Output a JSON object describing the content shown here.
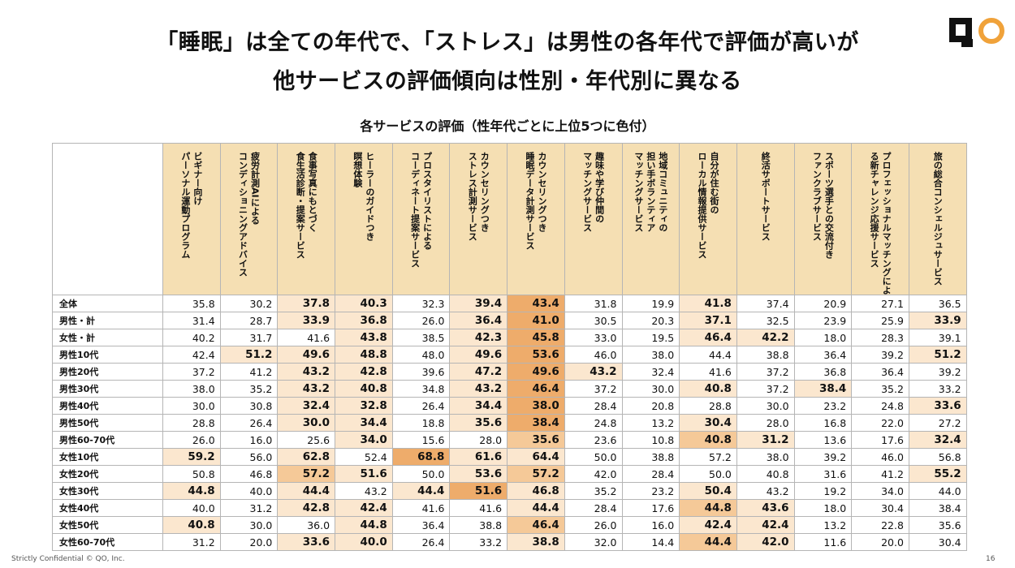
{
  "slide": {
    "title_line1": "「睡眠」は全ての年代で、「ストレス」は男性の各年代で評価が高いが",
    "title_line2": "他サービスの評価傾向は性別・年代別に異なる",
    "subtitle": "各サービスの評価（性年代ごとに上位5つに色付）",
    "footer_left": "Strictly Confidential © QO, Inc.",
    "page_number": "16",
    "logo_text": "QO",
    "logo_colors": {
      "q": "#111111",
      "o": "#f0a23a"
    }
  },
  "colors": {
    "header_bg": "#f5dfb3",
    "highlight_light": "#fbe7cf",
    "highlight_medium": "#f5c998",
    "highlight_dark": "#eeac6b"
  },
  "table": {
    "columns": [
      "ビギナー向け\nパーソナル運動プログラム",
      "疲労計測AIによる\nコンディショニングアドバイス",
      "食事写真にもとづく\n食生活診断・提案サービス",
      "ヒーラーのガイドつき\n瞑想体験",
      "プロスタイリストによる\nコーディネート提案サービス",
      "カウンセリングつき\nストレス計測サービス",
      "カウンセリングつき\n睡眠データ計測サービス",
      "趣味や学び仲間の\nマッチングサービス",
      "地域コミュニティの\n担い手ボランティア\nマッチングサービス",
      "自分が住む街の\nローカル情報提供サービス",
      "終活サポートサービス",
      "スポーツ選手との交流付き\nファンクラブサービス",
      "プロフェッショナルマッチングによ\nる新チャレンジ応援サービス",
      "旅の総合コンシェルジュサービス"
    ],
    "rows": [
      {
        "label": "全体",
        "values": [
          "35.8",
          "30.2",
          "37.8",
          "40.3",
          "32.3",
          "39.4",
          "43.4",
          "31.8",
          "19.9",
          "41.8",
          "37.4",
          "20.9",
          "27.1",
          "36.5"
        ],
        "highlight": [
          0,
          0,
          1,
          1,
          0,
          1,
          3,
          0,
          0,
          1,
          0,
          0,
          0,
          0
        ]
      },
      {
        "label": "男性・計",
        "values": [
          "31.4",
          "28.7",
          "33.9",
          "36.8",
          "26.0",
          "36.4",
          "41.0",
          "30.5",
          "20.3",
          "37.1",
          "32.5",
          "23.9",
          "25.9",
          "33.9"
        ],
        "highlight": [
          0,
          0,
          1,
          1,
          0,
          1,
          3,
          0,
          0,
          1,
          0,
          0,
          0,
          1
        ]
      },
      {
        "label": "女性・計",
        "values": [
          "40.2",
          "31.7",
          "41.6",
          "43.8",
          "38.5",
          "42.3",
          "45.8",
          "33.0",
          "19.5",
          "46.4",
          "42.2",
          "18.0",
          "28.3",
          "39.1"
        ],
        "highlight": [
          0,
          0,
          0,
          1,
          0,
          1,
          3,
          0,
          0,
          1,
          1,
          0,
          0,
          0
        ]
      },
      {
        "label": "男性10代",
        "values": [
          "42.4",
          "51.2",
          "49.6",
          "48.8",
          "48.0",
          "49.6",
          "53.6",
          "46.0",
          "38.0",
          "44.4",
          "38.8",
          "36.4",
          "39.2",
          "51.2"
        ],
        "highlight": [
          0,
          1,
          1,
          1,
          0,
          1,
          3,
          0,
          0,
          0,
          0,
          0,
          0,
          1
        ]
      },
      {
        "label": "男性20代",
        "values": [
          "37.2",
          "41.2",
          "43.2",
          "42.8",
          "39.6",
          "47.2",
          "49.6",
          "43.2",
          "32.4",
          "41.6",
          "37.2",
          "36.8",
          "36.4",
          "39.2"
        ],
        "highlight": [
          0,
          0,
          1,
          1,
          0,
          1,
          3,
          1,
          0,
          0,
          0,
          0,
          0,
          0
        ]
      },
      {
        "label": "男性30代",
        "values": [
          "38.0",
          "35.2",
          "43.2",
          "40.8",
          "34.8",
          "43.2",
          "46.4",
          "37.2",
          "30.0",
          "40.8",
          "37.2",
          "38.4",
          "35.2",
          "33.2"
        ],
        "highlight": [
          0,
          0,
          1,
          1,
          0,
          1,
          3,
          0,
          0,
          1,
          0,
          1,
          0,
          0
        ]
      },
      {
        "label": "男性40代",
        "values": [
          "30.0",
          "30.8",
          "32.4",
          "32.8",
          "26.4",
          "34.4",
          "38.0",
          "28.4",
          "20.8",
          "28.8",
          "30.0",
          "23.2",
          "24.8",
          "33.6"
        ],
        "highlight": [
          0,
          0,
          1,
          1,
          0,
          1,
          3,
          0,
          0,
          0,
          0,
          0,
          0,
          1
        ]
      },
      {
        "label": "男性50代",
        "values": [
          "28.8",
          "26.4",
          "30.0",
          "34.4",
          "18.8",
          "35.6",
          "38.4",
          "24.8",
          "13.2",
          "30.4",
          "28.0",
          "16.8",
          "22.0",
          "27.2"
        ],
        "highlight": [
          0,
          0,
          1,
          1,
          0,
          1,
          3,
          0,
          0,
          1,
          0,
          0,
          0,
          0
        ]
      },
      {
        "label": "男性60-70代",
        "values": [
          "26.0",
          "16.0",
          "25.6",
          "34.0",
          "15.6",
          "28.0",
          "35.6",
          "23.6",
          "10.8",
          "40.8",
          "31.2",
          "13.6",
          "17.6",
          "32.4"
        ],
        "highlight": [
          0,
          0,
          0,
          1,
          0,
          0,
          2,
          0,
          0,
          2,
          1,
          0,
          0,
          1
        ]
      },
      {
        "label": "女性10代",
        "values": [
          "59.2",
          "56.0",
          "62.8",
          "52.4",
          "68.8",
          "61.6",
          "64.4",
          "50.0",
          "38.8",
          "57.2",
          "38.0",
          "39.2",
          "46.0",
          "56.8"
        ],
        "highlight": [
          1,
          0,
          1,
          0,
          3,
          1,
          1,
          0,
          0,
          0,
          0,
          0,
          0,
          0
        ]
      },
      {
        "label": "女性20代",
        "values": [
          "50.8",
          "46.8",
          "57.2",
          "51.6",
          "50.0",
          "53.6",
          "57.2",
          "42.0",
          "28.4",
          "50.0",
          "40.8",
          "31.6",
          "41.2",
          "55.2"
        ],
        "highlight": [
          0,
          0,
          2,
          1,
          0,
          1,
          2,
          0,
          0,
          0,
          0,
          0,
          0,
          1
        ]
      },
      {
        "label": "女性30代",
        "values": [
          "44.8",
          "40.0",
          "44.4",
          "43.2",
          "44.4",
          "51.6",
          "46.8",
          "35.2",
          "23.2",
          "50.4",
          "43.2",
          "19.2",
          "34.0",
          "44.0"
        ],
        "highlight": [
          1,
          0,
          1,
          0,
          1,
          3,
          1,
          0,
          0,
          1,
          0,
          0,
          0,
          0
        ]
      },
      {
        "label": "女性40代",
        "values": [
          "40.0",
          "31.2",
          "42.8",
          "42.4",
          "41.6",
          "41.6",
          "44.4",
          "28.4",
          "17.6",
          "44.8",
          "43.6",
          "18.0",
          "30.4",
          "38.4"
        ],
        "highlight": [
          0,
          0,
          1,
          1,
          0,
          0,
          1,
          0,
          0,
          2,
          1,
          0,
          0,
          0
        ]
      },
      {
        "label": "女性50代",
        "values": [
          "40.8",
          "30.0",
          "36.0",
          "44.8",
          "36.4",
          "38.8",
          "46.4",
          "26.0",
          "16.0",
          "42.4",
          "42.4",
          "13.2",
          "22.8",
          "35.6"
        ],
        "highlight": [
          1,
          0,
          0,
          1,
          0,
          0,
          2,
          0,
          0,
          1,
          1,
          0,
          0,
          0
        ]
      },
      {
        "label": "女性60-70代",
        "values": [
          "31.2",
          "20.0",
          "33.6",
          "40.0",
          "26.4",
          "33.2",
          "38.8",
          "32.0",
          "14.4",
          "44.4",
          "42.0",
          "11.6",
          "20.0",
          "30.4"
        ],
        "highlight": [
          0,
          0,
          1,
          1,
          0,
          0,
          1,
          0,
          0,
          2,
          1,
          0,
          0,
          0
        ]
      }
    ]
  }
}
